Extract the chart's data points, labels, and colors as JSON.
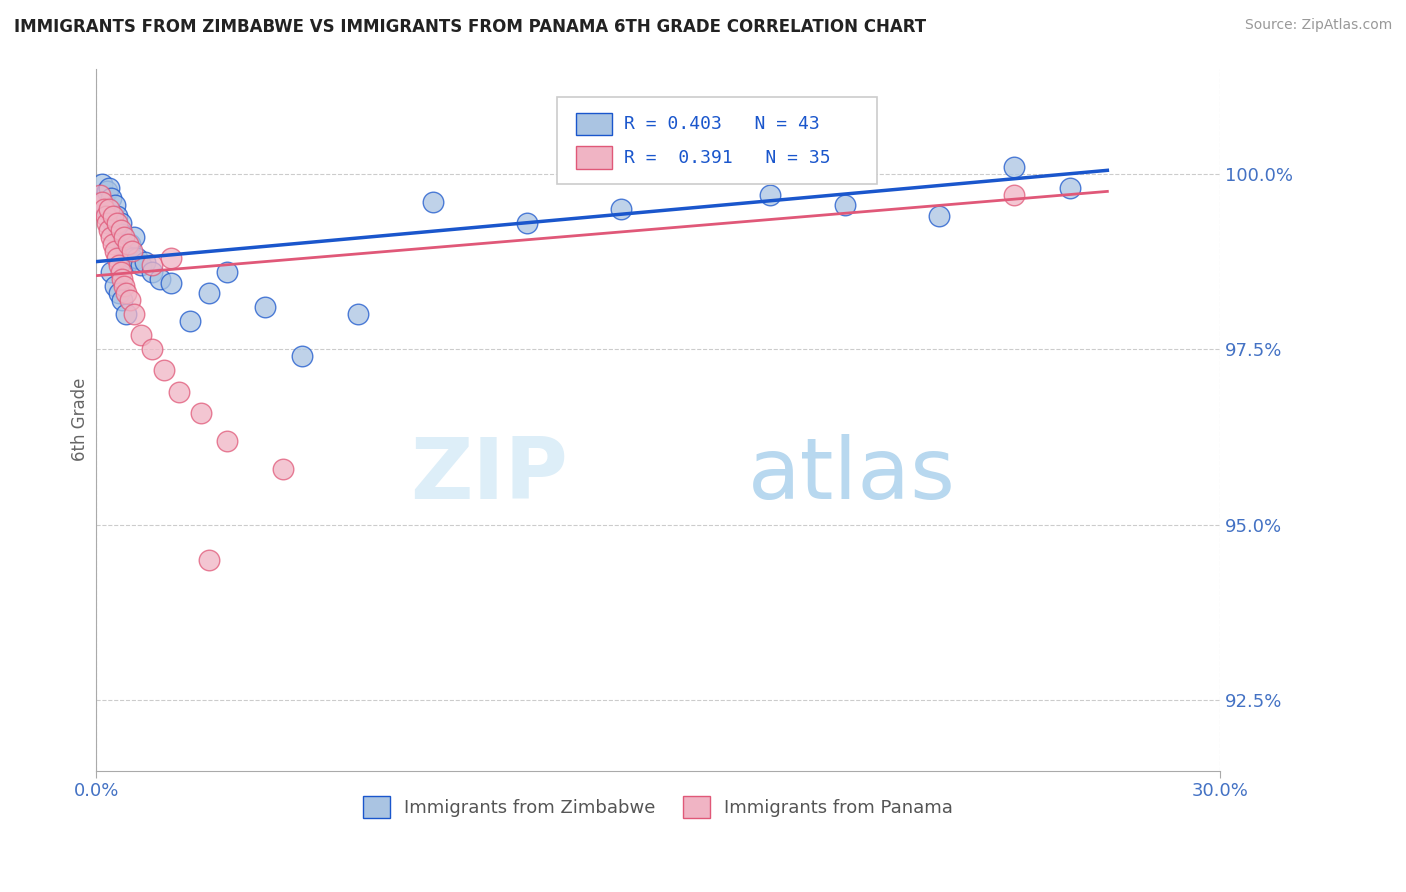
{
  "title": "IMMIGRANTS FROM ZIMBABWE VS IMMIGRANTS FROM PANAMA 6TH GRADE CORRELATION CHART",
  "source": "Source: ZipAtlas.com",
  "ylabel": "6th Grade",
  "xlim": [
    0.0,
    30.0
  ],
  "ylim": [
    91.5,
    101.5
  ],
  "yticks": [
    92.5,
    95.0,
    97.5,
    100.0
  ],
  "xticks": [
    0.0,
    30.0
  ],
  "r_zimbabwe": 0.403,
  "n_zimbabwe": 43,
  "r_panama": 0.391,
  "n_panama": 35,
  "color_zimbabwe": "#aac4e2",
  "color_panama": "#f0b4c4",
  "line_color_zimbabwe": "#1a56cc",
  "line_color_panama": "#e05878",
  "background_color": "#ffffff",
  "grid_color": "#cccccc",
  "title_color": "#222222",
  "tick_label_color": "#4472c4",
  "zim_trendline": [
    0.0,
    27.0,
    98.75,
    100.05
  ],
  "pan_trendline": [
    0.0,
    27.0,
    98.55,
    99.75
  ],
  "zimbabwe_x": [
    0.15,
    0.2,
    0.25,
    0.3,
    0.35,
    0.4,
    0.45,
    0.5,
    0.55,
    0.6,
    0.65,
    0.7,
    0.75,
    0.8,
    0.85,
    0.9,
    0.95,
    1.0,
    1.1,
    1.2,
    1.3,
    1.5,
    1.7,
    2.0,
    2.5,
    3.0,
    3.5,
    4.5,
    5.5,
    7.0,
    9.0,
    11.5,
    14.0,
    18.0,
    20.0,
    22.5,
    24.5,
    26.0,
    0.4,
    0.5,
    0.6,
    0.7,
    0.8
  ],
  "zimbabwe_y": [
    99.85,
    99.6,
    99.5,
    99.75,
    99.8,
    99.65,
    99.3,
    99.55,
    99.4,
    99.2,
    99.3,
    99.15,
    99.0,
    98.9,
    98.75,
    99.0,
    98.8,
    99.1,
    98.8,
    98.7,
    98.75,
    98.6,
    98.5,
    98.45,
    97.9,
    98.3,
    98.6,
    98.1,
    97.4,
    98.0,
    99.6,
    99.3,
    99.5,
    99.7,
    99.55,
    99.4,
    100.1,
    99.8,
    98.6,
    98.4,
    98.3,
    98.2,
    98.0
  ],
  "panama_x": [
    0.1,
    0.15,
    0.2,
    0.25,
    0.3,
    0.35,
    0.4,
    0.45,
    0.5,
    0.55,
    0.6,
    0.65,
    0.7,
    0.75,
    0.8,
    0.9,
    1.0,
    1.2,
    1.5,
    1.8,
    2.2,
    2.8,
    3.5,
    5.0,
    24.5,
    0.35,
    0.45,
    0.55,
    0.65,
    0.75,
    0.85,
    0.95,
    1.5,
    2.0,
    3.0
  ],
  "panama_y": [
    99.7,
    99.6,
    99.5,
    99.4,
    99.3,
    99.2,
    99.1,
    99.0,
    98.9,
    98.8,
    98.7,
    98.6,
    98.5,
    98.4,
    98.3,
    98.2,
    98.0,
    97.7,
    97.5,
    97.2,
    96.9,
    96.6,
    96.2,
    95.8,
    99.7,
    99.5,
    99.4,
    99.3,
    99.2,
    99.1,
    99.0,
    98.9,
    98.7,
    98.8,
    94.5
  ]
}
